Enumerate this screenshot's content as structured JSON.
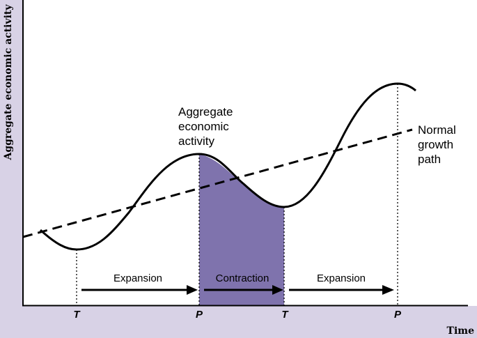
{
  "labels": {
    "y_axis": "Aggregate economic activity",
    "x_axis": "Time",
    "curve": [
      "Aggregate",
      "economic",
      "activity"
    ],
    "trend": [
      "Normal",
      "growth",
      "path"
    ]
  },
  "phases": [
    "Expansion",
    "Contraction",
    "Expansion"
  ],
  "ticks": [
    "T",
    "P",
    "T",
    "P"
  ],
  "colors": {
    "background": "#d8d2e6",
    "plot": "#ffffff",
    "contraction_fill": "#7f73ad",
    "line": "#000000"
  }
}
